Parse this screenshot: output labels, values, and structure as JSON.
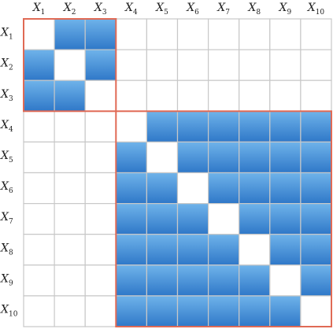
{
  "variables": [
    {
      "base": "X",
      "sub": "1"
    },
    {
      "base": "X",
      "sub": "2"
    },
    {
      "base": "X",
      "sub": "3"
    },
    {
      "base": "X",
      "sub": "4"
    },
    {
      "base": "X",
      "sub": "5"
    },
    {
      "base": "X",
      "sub": "6"
    },
    {
      "base": "X",
      "sub": "7"
    },
    {
      "base": "X",
      "sub": "8"
    },
    {
      "base": "X",
      "sub": "9"
    },
    {
      "base": "X",
      "sub": "10"
    }
  ],
  "blocks": [
    {
      "name": "block-1",
      "members": [
        1,
        2,
        3
      ]
    },
    {
      "name": "block-2",
      "members": [
        4,
        5,
        6,
        7,
        8,
        9,
        10
      ]
    }
  ],
  "colors": {
    "filled_top": "#6fb3ea",
    "filled_bottom": "#2f78c8",
    "grid_line": "#c8c8c8",
    "block_outline": "#e06a55",
    "empty": "#ffffff"
  }
}
